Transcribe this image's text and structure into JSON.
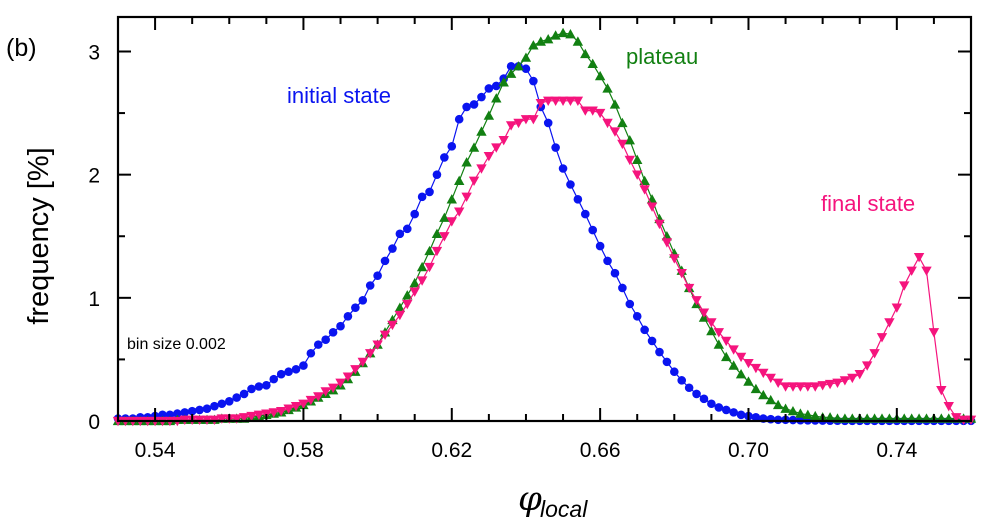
{
  "chart_data": {
    "type": "line",
    "panel_label": "(b)",
    "title": "",
    "xlabel": "φ",
    "xlabel_subscript": "local",
    "ylabel": "frequency [%]",
    "xlim": [
      0.53,
      0.76
    ],
    "ylim": [
      0,
      3.28
    ],
    "x_ticks": [
      0.54,
      0.58,
      0.62,
      0.66,
      0.7,
      0.74
    ],
    "x_tick_labels": [
      "0.54",
      "0.58",
      "0.62",
      "0.66",
      "0.70",
      "0.74"
    ],
    "x_minor_step": 0.01,
    "y_ticks": [
      0,
      1,
      2,
      3
    ],
    "y_tick_labels": [
      "0",
      "1",
      "2",
      "3"
    ],
    "y_minor_step": 0.5,
    "grid": false,
    "annotation": "bin size 0.002",
    "x": [
      0.53,
      0.532,
      0.534,
      0.536,
      0.538,
      0.54,
      0.542,
      0.544,
      0.546,
      0.548,
      0.55,
      0.552,
      0.554,
      0.556,
      0.558,
      0.56,
      0.562,
      0.564,
      0.566,
      0.568,
      0.57,
      0.572,
      0.574,
      0.576,
      0.578,
      0.58,
      0.582,
      0.584,
      0.586,
      0.588,
      0.59,
      0.592,
      0.594,
      0.596,
      0.598,
      0.6,
      0.602,
      0.604,
      0.606,
      0.608,
      0.61,
      0.612,
      0.614,
      0.616,
      0.618,
      0.62,
      0.622,
      0.624,
      0.626,
      0.628,
      0.63,
      0.632,
      0.634,
      0.636,
      0.638,
      0.64,
      0.642,
      0.644,
      0.646,
      0.648,
      0.65,
      0.652,
      0.654,
      0.656,
      0.658,
      0.66,
      0.662,
      0.664,
      0.666,
      0.668,
      0.67,
      0.672,
      0.674,
      0.676,
      0.678,
      0.68,
      0.682,
      0.684,
      0.686,
      0.688,
      0.69,
      0.692,
      0.694,
      0.696,
      0.698,
      0.7,
      0.702,
      0.704,
      0.706,
      0.708,
      0.71,
      0.712,
      0.714,
      0.716,
      0.718,
      0.72,
      0.722,
      0.724,
      0.726,
      0.728,
      0.73,
      0.732,
      0.734,
      0.736,
      0.738,
      0.74,
      0.742,
      0.744,
      0.746,
      0.748,
      0.75,
      0.752,
      0.754,
      0.756,
      0.758,
      0.76
    ],
    "series": [
      {
        "name": "initial state",
        "label": "initial state",
        "color": "#0a14f0",
        "marker": "circle",
        "values": [
          0.02,
          0.02,
          0.02,
          0.03,
          0.03,
          0.04,
          0.05,
          0.05,
          0.06,
          0.07,
          0.08,
          0.09,
          0.1,
          0.12,
          0.14,
          0.16,
          0.19,
          0.22,
          0.26,
          0.28,
          0.29,
          0.34,
          0.38,
          0.4,
          0.42,
          0.45,
          0.55,
          0.62,
          0.66,
          0.72,
          0.77,
          0.85,
          0.92,
          0.98,
          1.1,
          1.18,
          1.3,
          1.4,
          1.52,
          1.56,
          1.68,
          1.82,
          1.86,
          2.0,
          2.14,
          2.23,
          2.45,
          2.55,
          2.57,
          2.63,
          2.7,
          2.72,
          2.78,
          2.88,
          2.88,
          2.86,
          2.76,
          2.55,
          2.42,
          2.22,
          2.05,
          1.92,
          1.8,
          1.68,
          1.55,
          1.42,
          1.3,
          1.2,
          1.08,
          0.95,
          0.85,
          0.74,
          0.65,
          0.56,
          0.48,
          0.4,
          0.33,
          0.27,
          0.22,
          0.18,
          0.14,
          0.11,
          0.09,
          0.07,
          0.05,
          0.04,
          0.03,
          0.02,
          0.015,
          0.01,
          0.01,
          0.008,
          0.006,
          0.005,
          0.004,
          0.003,
          0.002,
          0.002,
          0.001,
          0.001,
          0.001,
          0.001,
          0.001,
          0.001,
          0.001,
          0.001,
          0.001,
          0.001,
          0.001,
          0.001,
          0.001,
          0.001,
          0.001,
          0.001,
          0.001,
          0.001
        ]
      },
      {
        "name": "plateau",
        "label": "plateau",
        "color": "#128012",
        "marker": "triangle-up",
        "values": [
          0.0,
          0.0,
          0.0,
          0.0,
          0.0,
          0.0,
          0.0,
          0.0,
          0.01,
          0.01,
          0.01,
          0.01,
          0.01,
          0.01,
          0.02,
          0.02,
          0.02,
          0.02,
          0.03,
          0.04,
          0.05,
          0.06,
          0.07,
          0.09,
          0.11,
          0.13,
          0.16,
          0.19,
          0.22,
          0.25,
          0.29,
          0.34,
          0.4,
          0.47,
          0.55,
          0.62,
          0.72,
          0.82,
          0.92,
          1.02,
          1.12,
          1.25,
          1.38,
          1.52,
          1.65,
          1.8,
          1.95,
          2.1,
          2.22,
          2.35,
          2.48,
          2.62,
          2.75,
          2.82,
          2.88,
          2.95,
          3.05,
          3.08,
          3.1,
          3.13,
          3.15,
          3.14,
          3.08,
          2.98,
          2.9,
          2.8,
          2.7,
          2.57,
          2.42,
          2.28,
          2.12,
          1.95,
          1.8,
          1.64,
          1.5,
          1.36,
          1.22,
          1.08,
          0.95,
          0.84,
          0.73,
          0.62,
          0.52,
          0.45,
          0.38,
          0.32,
          0.26,
          0.21,
          0.17,
          0.13,
          0.1,
          0.08,
          0.06,
          0.05,
          0.04,
          0.03,
          0.03,
          0.02,
          0.02,
          0.02,
          0.02,
          0.02,
          0.02,
          0.02,
          0.02,
          0.02,
          0.02,
          0.02,
          0.02,
          0.02,
          0.02,
          0.02,
          0.02,
          0.02,
          0.02,
          0.02
        ]
      },
      {
        "name": "final state",
        "label": "final state",
        "color": "#f5147d",
        "marker": "triangle-down",
        "values": [
          0.0,
          0.0,
          0.0,
          0.0,
          0.0,
          0.0,
          0.0,
          0.0,
          0.0,
          0.01,
          0.01,
          0.01,
          0.01,
          0.01,
          0.02,
          0.02,
          0.02,
          0.03,
          0.04,
          0.05,
          0.06,
          0.07,
          0.08,
          0.1,
          0.12,
          0.14,
          0.17,
          0.2,
          0.24,
          0.27,
          0.31,
          0.36,
          0.42,
          0.48,
          0.55,
          0.62,
          0.7,
          0.78,
          0.86,
          0.95,
          1.05,
          1.14,
          1.25,
          1.38,
          1.5,
          1.62,
          1.7,
          1.82,
          1.95,
          2.05,
          2.15,
          2.22,
          2.28,
          2.4,
          2.42,
          2.45,
          2.45,
          2.58,
          2.6,
          2.6,
          2.6,
          2.6,
          2.6,
          2.52,
          2.52,
          2.5,
          2.42,
          2.35,
          2.25,
          2.12,
          2.0,
          1.88,
          1.74,
          1.6,
          1.45,
          1.32,
          1.2,
          1.08,
          0.98,
          0.88,
          0.8,
          0.72,
          0.65,
          0.58,
          0.52,
          0.47,
          0.43,
          0.39,
          0.35,
          0.31,
          0.28,
          0.28,
          0.28,
          0.28,
          0.28,
          0.29,
          0.3,
          0.31,
          0.33,
          0.35,
          0.38,
          0.45,
          0.55,
          0.68,
          0.8,
          0.92,
          1.1,
          1.22,
          1.33,
          1.22,
          0.72,
          0.25,
          0.12,
          0.03,
          0.01,
          0.01
        ]
      }
    ]
  }
}
